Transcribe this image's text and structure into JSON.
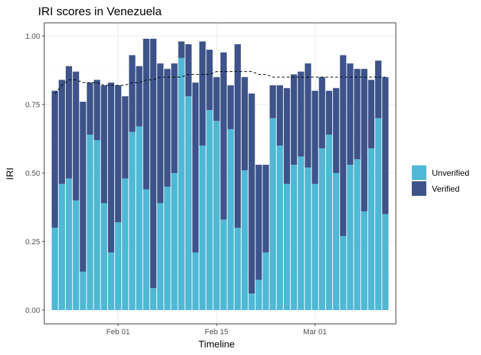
{
  "chart_data": {
    "type": "bar",
    "stacked": true,
    "title": "IRI scores in Venezuela",
    "xlabel": "Timeline",
    "ylabel": "IRI",
    "ylim": [
      0,
      1.0
    ],
    "y_ticks": [
      "0.00",
      "0.25",
      "0.50",
      "0.75",
      "1.00"
    ],
    "x_tick_labels": [
      {
        "label": "Feb 01",
        "day": 0
      },
      {
        "label": "Feb 15",
        "day": 14
      },
      {
        "label": "Mar 01",
        "day": 28
      }
    ],
    "x_day_range": [
      -10.5,
      39.5
    ],
    "x_days": [
      -9,
      -8,
      -7,
      -6,
      -5,
      -4,
      -3,
      -2,
      -1,
      0,
      1,
      2,
      3,
      4,
      5,
      6,
      7,
      8,
      9,
      10,
      11,
      12,
      13,
      14,
      15,
      16,
      17,
      18,
      19,
      20,
      21,
      22,
      23,
      24,
      25,
      26,
      27,
      28,
      29,
      30,
      31,
      32,
      33,
      34,
      35,
      36,
      37,
      38
    ],
    "series": [
      {
        "name": "Unverified",
        "color": "#4FB8D5",
        "values": [
          0.3,
          0.46,
          0.48,
          0.4,
          0.14,
          0.64,
          0.62,
          0.39,
          0.21,
          0.32,
          0.48,
          0.65,
          0.67,
          0.44,
          0.08,
          0.39,
          0.45,
          0.5,
          0.92,
          0.78,
          0.21,
          0.6,
          0.73,
          0.69,
          0.33,
          0.66,
          0.3,
          0.51,
          0.06,
          0.11,
          0.21,
          0.7,
          0.6,
          0.46,
          0.53,
          0.56,
          0.52,
          0.46,
          0.59,
          0.64,
          0.5,
          0.27,
          0.53,
          0.55,
          0.36,
          0.59,
          0.7,
          0.35
        ]
      },
      {
        "name": "Verified",
        "color": "#3D538A",
        "values": [
          0.5,
          0.38,
          0.41,
          0.47,
          0.62,
          0.19,
          0.22,
          0.43,
          0.62,
          0.5,
          0.3,
          0.28,
          0.22,
          0.55,
          0.91,
          0.51,
          0.43,
          0.4,
          0.06,
          0.19,
          0.62,
          0.38,
          0.22,
          0.16,
          0.61,
          0.16,
          0.67,
          0.34,
          0.73,
          0.42,
          0.32,
          0.12,
          0.22,
          0.35,
          0.33,
          0.31,
          0.38,
          0.34,
          0.26,
          0.16,
          0.31,
          0.66,
          0.37,
          0.33,
          0.52,
          0.25,
          0.21,
          0.5
        ]
      }
    ],
    "total": [
      0.8,
      0.84,
      0.89,
      0.87,
      0.76,
      0.83,
      0.84,
      0.82,
      0.83,
      0.82,
      0.78,
      0.93,
      0.89,
      0.99,
      0.99,
      0.9,
      0.88,
      0.9,
      0.98,
      0.97,
      0.83,
      0.98,
      0.95,
      0.85,
      0.94,
      0.82,
      0.97,
      0.85,
      0.79,
      0.53,
      0.53,
      0.82,
      0.82,
      0.81,
      0.86,
      0.87,
      0.9,
      0.8,
      0.85,
      0.8,
      0.81,
      0.93,
      0.9,
      0.88,
      0.88,
      0.84,
      0.91,
      0.85
    ],
    "trend_line": {
      "style": "dashed",
      "color": "#000000",
      "values": [
        0.79,
        0.82,
        0.84,
        0.84,
        0.83,
        0.83,
        0.83,
        0.82,
        0.82,
        0.82,
        0.82,
        0.83,
        0.83,
        0.84,
        0.84,
        0.85,
        0.85,
        0.85,
        0.85,
        0.86,
        0.86,
        0.86,
        0.86,
        0.87,
        0.87,
        0.87,
        0.87,
        0.87,
        0.87,
        0.86,
        0.86,
        0.85,
        0.85,
        0.85,
        0.85,
        0.85,
        0.85,
        0.85,
        0.85,
        0.85,
        0.85,
        0.85,
        0.85,
        0.85,
        0.85,
        0.85,
        0.85,
        0.85
      ]
    },
    "legend": {
      "position": "right",
      "entries": [
        "Unverified",
        "Verified"
      ]
    },
    "grid": true,
    "background": "#ffffff"
  }
}
